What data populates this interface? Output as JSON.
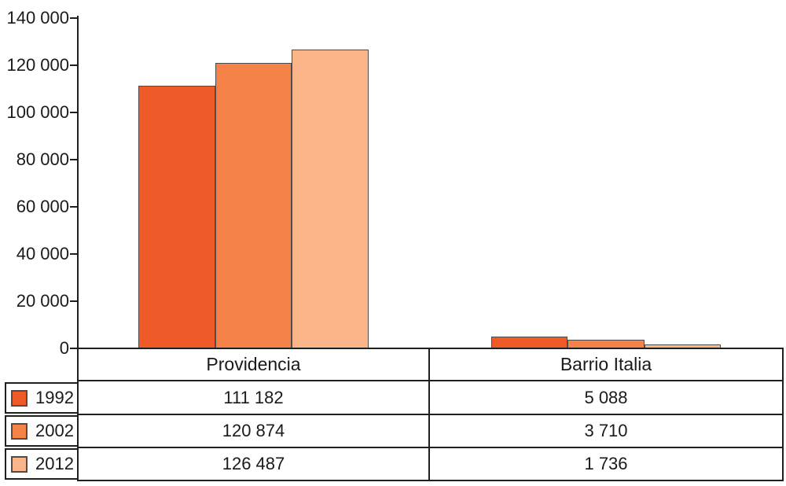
{
  "chart_data": {
    "type": "bar",
    "title": "",
    "xlabel": "",
    "ylabel": "",
    "categories": [
      "Providencia",
      "Barrio Italia"
    ],
    "series": [
      {
        "name": "1992",
        "color": "#f05a28",
        "values": [
          111182,
          5088
        ]
      },
      {
        "name": "2002",
        "color": "#f58349",
        "values": [
          120874,
          3710
        ]
      },
      {
        "name": "2012",
        "color": "#fab588",
        "values": [
          126487,
          1736
        ]
      }
    ],
    "ylim": [
      0,
      140000
    ],
    "ytick_step": 20000,
    "ytick_labels": [
      "0",
      "20 000",
      "40 000",
      "60 000",
      "80 000",
      "100 000",
      "120 000",
      "140 000"
    ],
    "grid": false,
    "legend_position": "table-left-column"
  },
  "table": {
    "column_headers": [
      "Providencia",
      "Barrio Italia"
    ],
    "rows": [
      {
        "label": "1992",
        "swatch_color": "#f05a28",
        "values": [
          "111 182",
          "5 088"
        ]
      },
      {
        "label": "2002",
        "swatch_color": "#f58349",
        "values": [
          "120 874",
          "3 710"
        ]
      },
      {
        "label": "2012",
        "swatch_color": "#fab588",
        "values": [
          "126 487",
          "1 736"
        ]
      }
    ]
  },
  "colors": {
    "series_1992": "#f05a28",
    "series_2002": "#f58349",
    "series_2012": "#fab588",
    "bar_border": "#4d4d4d",
    "line": "#1f1f1f",
    "text": "#1a1a1a",
    "background": "#ffffff"
  }
}
